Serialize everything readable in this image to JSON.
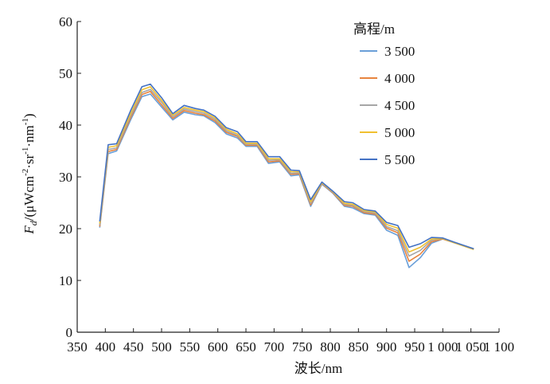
{
  "chart_data": {
    "type": "line",
    "title": "",
    "xlabel": "波长/nm",
    "ylabel_main": "F",
    "ylabel_sub": "d",
    "ylabel_rest": "/(μWcm",
    "ylabel_sup1": "-2",
    "ylabel_mid": "·sr",
    "ylabel_sup2": "-1",
    "ylabel_mid2": "·nm",
    "ylabel_sup3": "-1",
    "ylabel_end": ")",
    "xlim": [
      350,
      1100
    ],
    "ylim": [
      0,
      60
    ],
    "x_ticks": [
      350,
      400,
      450,
      500,
      550,
      600,
      650,
      700,
      750,
      800,
      850,
      900,
      950,
      1000,
      1050,
      1100
    ],
    "x_tick_labels": [
      "350",
      "400",
      "450",
      "500",
      "550",
      "600",
      "650",
      "700",
      "750",
      "800",
      "850",
      "900",
      "950",
      "1 000",
      "1 050",
      "1 100"
    ],
    "y_ticks": [
      0,
      10,
      20,
      30,
      40,
      50,
      60
    ],
    "grid": false,
    "legend_title": "高程/m",
    "legend_position": "top-right",
    "x": [
      390,
      405,
      420,
      445,
      465,
      480,
      500,
      520,
      540,
      560,
      575,
      595,
      615,
      635,
      650,
      670,
      690,
      710,
      730,
      745,
      765,
      785,
      805,
      825,
      840,
      860,
      880,
      900,
      920,
      940,
      960,
      980,
      1000,
      1020,
      1055
    ],
    "series": [
      {
        "name": "3 500",
        "color": "#6a9fd8",
        "values": [
          20.2,
          34.5,
          35.0,
          41.0,
          45.5,
          46.0,
          43.5,
          41.0,
          42.5,
          42.0,
          41.8,
          40.5,
          38.3,
          37.5,
          35.9,
          35.9,
          32.6,
          32.9,
          30.2,
          30.4,
          24.3,
          28.6,
          26.8,
          24.3,
          24.0,
          22.9,
          22.6,
          19.7,
          18.7,
          12.5,
          14.4,
          17.2,
          18.0,
          17.3,
          16.1
        ]
      },
      {
        "name": "4 000",
        "color": "#e8843e",
        "values": [
          20.4,
          34.9,
          35.3,
          41.4,
          45.9,
          46.5,
          43.9,
          41.3,
          42.8,
          42.3,
          42.0,
          40.8,
          38.6,
          37.8,
          36.1,
          36.1,
          32.9,
          33.1,
          30.5,
          30.6,
          24.6,
          28.7,
          26.9,
          24.5,
          24.3,
          23.1,
          22.8,
          20.1,
          19.2,
          13.7,
          15.1,
          17.5,
          18.0,
          17.3,
          16.0
        ]
      },
      {
        "name": "4 500",
        "color": "#a6a6a6",
        "values": [
          20.7,
          35.3,
          35.6,
          41.8,
          46.3,
          46.9,
          44.4,
          41.6,
          43.1,
          42.6,
          42.3,
          41.1,
          38.9,
          38.0,
          36.3,
          36.3,
          33.2,
          33.3,
          30.7,
          30.8,
          24.9,
          28.8,
          27.0,
          24.7,
          24.5,
          23.3,
          23.0,
          20.4,
          19.6,
          14.7,
          15.8,
          17.8,
          18.1,
          17.3,
          16.0
        ]
      },
      {
        "name": "5 000",
        "color": "#f0c030",
        "values": [
          21.0,
          35.7,
          36.0,
          42.2,
          46.8,
          47.4,
          44.8,
          41.9,
          43.4,
          42.9,
          42.6,
          41.4,
          39.2,
          38.3,
          36.5,
          36.5,
          33.5,
          33.5,
          31.0,
          31.0,
          25.2,
          28.9,
          27.1,
          24.9,
          24.7,
          23.5,
          23.2,
          20.8,
          20.1,
          15.5,
          16.4,
          18.0,
          18.1,
          17.3,
          16.0
        ]
      },
      {
        "name": "5 500",
        "color": "#4472c4",
        "values": [
          21.4,
          36.2,
          36.4,
          42.8,
          47.4,
          47.9,
          45.3,
          42.2,
          43.8,
          43.2,
          42.9,
          41.7,
          39.5,
          38.7,
          36.8,
          36.8,
          33.9,
          33.9,
          31.3,
          31.2,
          25.6,
          29.0,
          27.2,
          25.2,
          25.0,
          23.7,
          23.4,
          21.2,
          20.6,
          16.4,
          17.1,
          18.3,
          18.2,
          17.4,
          16.1
        ]
      }
    ]
  }
}
